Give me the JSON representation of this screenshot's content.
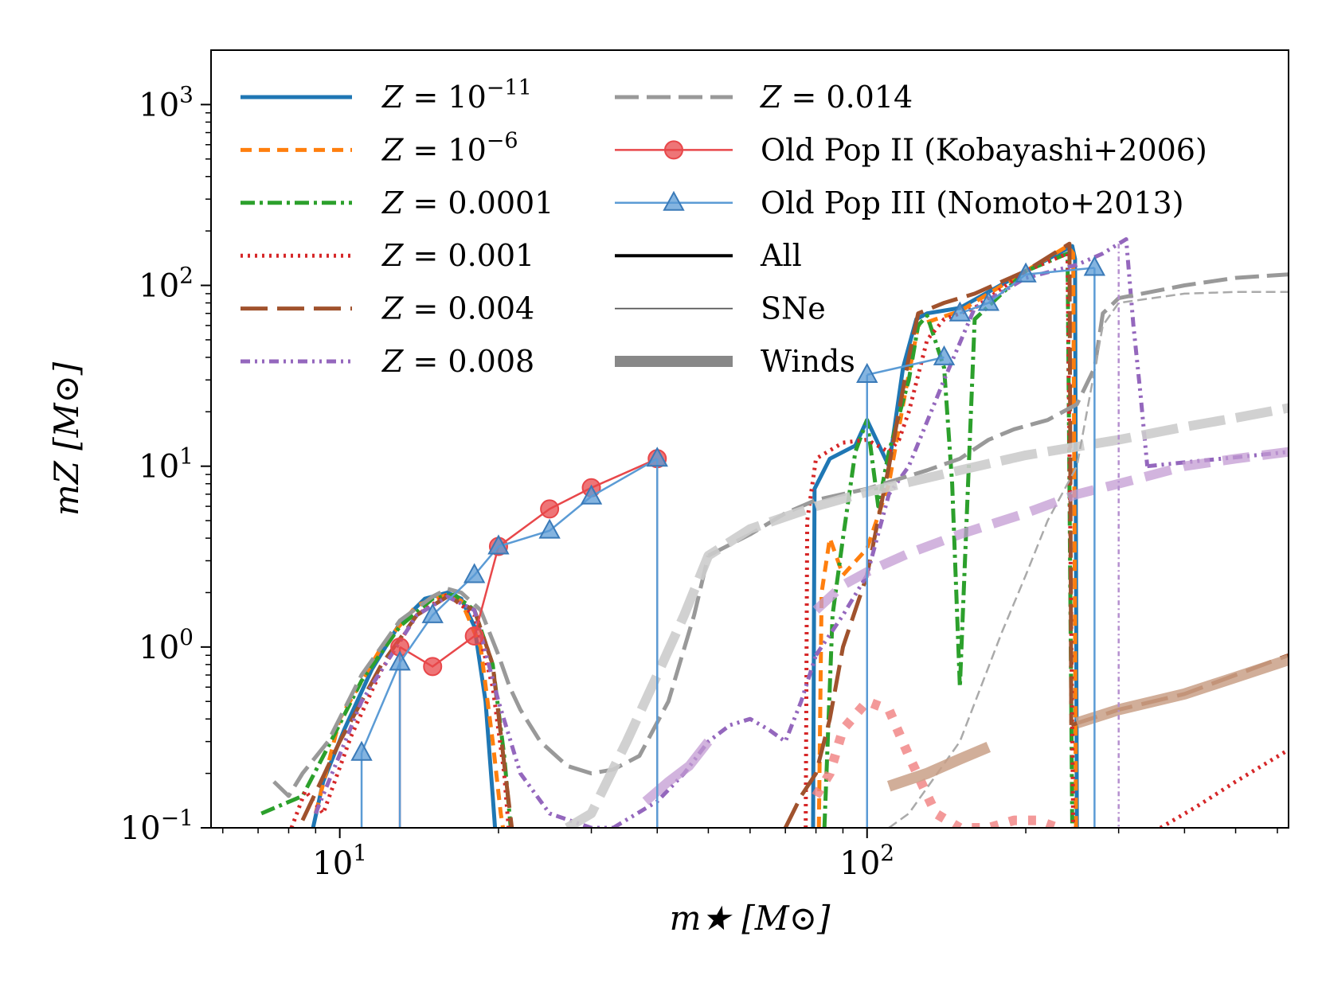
{
  "chart_data": {
    "type": "line",
    "xscale": "log",
    "yscale": "log",
    "xlim": [
      5.7,
      630
    ],
    "ylim": [
      0.1,
      2000
    ],
    "xlabel": "m★ [M⊙]",
    "ylabel": "mZ [M⊙]",
    "x_ticks": [
      {
        "value": 10,
        "base": "10",
        "exp": "1"
      },
      {
        "value": 100,
        "base": "10",
        "exp": "2"
      }
    ],
    "y_ticks": [
      {
        "value": 0.1,
        "base": "10",
        "exp": "−1"
      },
      {
        "value": 1,
        "base": "10",
        "exp": "0"
      },
      {
        "value": 10,
        "base": "10",
        "exp": "1"
      },
      {
        "value": 100,
        "base": "10",
        "exp": "2"
      },
      {
        "value": 1000,
        "base": "10",
        "exp": "3"
      }
    ],
    "legend": {
      "placement": "top-left",
      "entries": [
        {
          "label_prefix": "Z = 10",
          "label_sup": "−11",
          "color": "#1f77b4",
          "style": "solid"
        },
        {
          "label_prefix": "Z = 10",
          "label_sup": "−6",
          "color": "#ff7f0e",
          "style": "dashed"
        },
        {
          "label_prefix": "Z = 0.0001",
          "label_sup": "",
          "color": "#2ca02c",
          "style": "dashdot"
        },
        {
          "label_prefix": "Z = 0.001",
          "label_sup": "",
          "color": "#d62728",
          "style": "dotted"
        },
        {
          "label_prefix": "Z = 0.004",
          "label_sup": "",
          "color": "#a0522d",
          "style": "longdash"
        },
        {
          "label_prefix": "Z = 0.008",
          "label_sup": "",
          "color": "#9467bd",
          "style": "dashdotdot"
        },
        {
          "label_prefix": "Z = 0.014",
          "label_sup": "",
          "color": "#999999",
          "style": "dash"
        },
        {
          "label_prefix": "Old Pop II (Kobayashi+2006)",
          "label_sup": "",
          "color": "#e8474a",
          "style": "marker-circle"
        },
        {
          "label_prefix": "Old Pop III (Nomoto+2013)",
          "label_sup": "",
          "color": "#5b9bd5",
          "style": "marker-triangle"
        },
        {
          "label_prefix": "All",
          "label_sup": "",
          "color": "#000000",
          "style": "thick"
        },
        {
          "label_prefix": "SNe",
          "label_sup": "",
          "color": "#555555",
          "style": "thin"
        },
        {
          "label_prefix": "Winds",
          "label_sup": "",
          "color": "#888888",
          "style": "wide"
        }
      ]
    },
    "series": [
      {
        "name": "Z = 10^-11 (All)",
        "color": "#1f77b4",
        "dash": "",
        "width": 5,
        "opacity": 1,
        "x": [
          8.9,
          9.3,
          10.2,
          11.5,
          13,
          14.5,
          16,
          17,
          18,
          18.9,
          19.5,
          19.7
        ],
        "y": [
          0.1,
          0.18,
          0.35,
          0.75,
          1.35,
          1.85,
          2.0,
          1.85,
          1.3,
          0.5,
          0.15,
          0.1
        ]
      },
      {
        "name": "Z = 10^-11 high (All)",
        "color": "#1f77b4",
        "dash": "",
        "width": 5,
        "opacity": 1,
        "x": [
          79,
          79.5,
          85,
          95,
          100,
          110,
          117,
          124,
          130,
          150,
          200,
          240,
          245,
          248,
          250
        ],
        "y": [
          0.1,
          7.5,
          11,
          13,
          18,
          10,
          35,
          65,
          70,
          75,
          120,
          160,
          165,
          140,
          0.1
        ]
      },
      {
        "name": "Z = 10^-6 (All)",
        "color": "#ff7f0e",
        "dash": "14,9",
        "width": 5,
        "opacity": 1,
        "x": [
          9.0,
          10,
          12,
          14,
          16,
          17,
          18.5,
          19.5,
          20.2,
          20.4
        ],
        "y": [
          0.12,
          0.4,
          1.0,
          1.7,
          1.95,
          1.8,
          1.0,
          0.3,
          0.12,
          0.1
        ]
      },
      {
        "name": "Z = 10^-6 high (All)",
        "color": "#ff7f0e",
        "dash": "14,9",
        "width": 5,
        "opacity": 1,
        "x": [
          81,
          82,
          85,
          90,
          100,
          110,
          118,
          125,
          135,
          150,
          200,
          240,
          246,
          249
        ],
        "y": [
          0.1,
          2.0,
          4.0,
          2.5,
          3.5,
          8,
          25,
          60,
          65,
          72,
          120,
          165,
          150,
          0.1
        ]
      },
      {
        "name": "Z = 0.0001 (All)",
        "color": "#2ca02c",
        "dash": "18,6,4,6",
        "width": 5,
        "opacity": 1,
        "x": [
          7.1,
          8.5,
          9.5,
          11,
          13,
          15,
          16.5,
          18,
          19.5,
          20.5,
          21.1
        ],
        "y": [
          0.12,
          0.15,
          0.28,
          0.65,
          1.3,
          1.85,
          1.95,
          1.6,
          0.8,
          0.25,
          0.1
        ]
      },
      {
        "name": "Z = 0.0001 high (All)",
        "color": "#2ca02c",
        "dash": "18,6,4,6",
        "width": 5,
        "opacity": 1,
        "x": [
          83,
          86,
          90,
          95,
          100,
          105,
          110,
          120,
          125,
          130,
          140,
          145,
          150,
          160,
          200,
          240,
          245
        ],
        "y": [
          0.1,
          1.5,
          4,
          12,
          18,
          6,
          12,
          30,
          60,
          68,
          35,
          8,
          0.6,
          65,
          120,
          150,
          0.1
        ]
      },
      {
        "name": "Z = 0.001 (All)",
        "color": "#d62728",
        "dash": "3,6",
        "width": 5,
        "opacity": 1,
        "x": [
          8.1,
          8.6,
          9.3,
          10.5,
          12,
          14,
          16,
          18,
          19.5,
          20.5,
          20.9
        ],
        "y": [
          0.1,
          0.16,
          0.12,
          0.32,
          0.75,
          1.5,
          1.95,
          1.5,
          0.6,
          0.2,
          0.1
        ]
      },
      {
        "name": "Z = 0.001 high (All)",
        "color": "#d62728",
        "dash": "3,6",
        "width": 5,
        "opacity": 1,
        "x": [
          76.5,
          77,
          80,
          90,
          100,
          110,
          115,
          120,
          130,
          140,
          160,
          200,
          240,
          246
        ],
        "y": [
          0.1,
          5.0,
          11,
          13.5,
          14,
          12,
          14,
          20,
          50,
          65,
          75,
          120,
          150,
          0.1
        ]
      },
      {
        "name": "Z = 0.001 tail (All)",
        "color": "#d62728",
        "dash": "3,6",
        "width": 5,
        "opacity": 1,
        "x": [
          360,
          420,
          500,
          630
        ],
        "y": [
          0.1,
          0.13,
          0.18,
          0.27
        ]
      },
      {
        "name": "Z = 0.004 (All)",
        "color": "#a0522d",
        "dash": "34,12",
        "width": 5,
        "opacity": 1,
        "x": [
          8.5,
          10,
          12,
          14,
          16,
          18,
          19.5,
          20.6,
          21.2
        ],
        "y": [
          0.11,
          0.3,
          0.8,
          1.5,
          1.9,
          1.6,
          0.8,
          0.2,
          0.1
        ]
      },
      {
        "name": "Z = 0.004 high (All)",
        "color": "#a0522d",
        "dash": "34,12",
        "width": 5,
        "opacity": 1,
        "x": [
          70,
          75,
          80,
          85,
          90,
          100,
          110,
          120,
          125,
          140,
          160,
          200,
          238,
          242,
          244
        ],
        "y": [
          0.1,
          0.15,
          0.2,
          0.4,
          1.0,
          2.5,
          10,
          40,
          70,
          80,
          90,
          120,
          165,
          170,
          0.37
        ]
      },
      {
        "name": "Z = 0.004 tail (All)",
        "color": "#a0522d",
        "dash": "34,12",
        "width": 5,
        "opacity": 1,
        "x": [
          244,
          300,
          400,
          500,
          630
        ],
        "y": [
          0.37,
          0.45,
          0.55,
          0.7,
          0.9
        ]
      },
      {
        "name": "Z = 0.008 (All)",
        "color": "#9467bd",
        "dash": "12,6,3,6,3,6",
        "width": 5,
        "opacity": 1,
        "x": [
          9.0,
          11,
          14,
          16,
          18,
          20,
          22,
          25,
          30,
          33
        ],
        "y": [
          0.12,
          0.5,
          1.5,
          1.9,
          1.6,
          0.5,
          0.2,
          0.12,
          0.1,
          0.1
        ]
      },
      {
        "name": "Z = 0.008 mid (All)",
        "color": "#9467bd",
        "dash": "12,6,3,6,3,6",
        "width": 5,
        "opacity": 1,
        "x": [
          33,
          40,
          45,
          50,
          55,
          60,
          65,
          70,
          75,
          80
        ],
        "y": [
          0.1,
          0.14,
          0.2,
          0.3,
          0.37,
          0.4,
          0.35,
          0.3,
          0.5,
          0.9
        ]
      },
      {
        "name": "Z = 0.008 high (All)",
        "color": "#9467bd",
        "dash": "12,6,3,6,3,6",
        "width": 5,
        "opacity": 1,
        "x": [
          80,
          90,
          100,
          110,
          120,
          140,
          160,
          200,
          250,
          280,
          300,
          310,
          320,
          330,
          340
        ],
        "y": [
          0.9,
          1.5,
          2.5,
          7,
          10,
          30,
          75,
          110,
          130,
          150,
          170,
          180,
          60,
          25,
          10
        ]
      },
      {
        "name": "Z = 0.008 tail (All)",
        "color": "#9467bd",
        "dash": "12,6,3,6,3,6",
        "width": 5,
        "opacity": 1,
        "x": [
          340,
          400,
          500,
          630
        ],
        "y": [
          10,
          10.5,
          11.2,
          12
        ]
      },
      {
        "name": "Z = 0.014 (All)",
        "color": "#999999",
        "dash": "30,10",
        "width": 5,
        "opacity": 1,
        "x": [
          7.5,
          8,
          8.5,
          9.5,
          11,
          13,
          15,
          16,
          17,
          18.5,
          20,
          21,
          22,
          24,
          27,
          30,
          33,
          37,
          42,
          47,
          50
        ],
        "y": [
          0.18,
          0.15,
          0.2,
          0.3,
          0.7,
          1.4,
          1.9,
          2.1,
          2.0,
          1.6,
          0.9,
          0.6,
          0.45,
          0.3,
          0.22,
          0.2,
          0.21,
          0.25,
          0.5,
          1.5,
          3.2
        ]
      },
      {
        "name": "Z = 0.014 high (All)",
        "color": "#999999",
        "dash": "30,10",
        "width": 5,
        "opacity": 1,
        "x": [
          50,
          60,
          70,
          80,
          100,
          130,
          150,
          170,
          190,
          220,
          250,
          270,
          280,
          300,
          400,
          500,
          630
        ],
        "y": [
          3.2,
          4.2,
          5.5,
          6.5,
          7.5,
          9.5,
          11,
          14,
          16,
          18,
          22,
          35,
          70,
          85,
          100,
          110,
          115
        ]
      },
      {
        "name": "Z = 0.014 (Winds)",
        "color": "#cccccc",
        "dash": "46,14",
        "width": 12,
        "opacity": 0.9,
        "x": [
          27,
          30,
          35,
          40,
          45,
          50,
          60,
          80,
          100,
          150,
          200,
          300,
          400,
          500,
          630
        ],
        "y": [
          0.1,
          0.12,
          0.3,
          0.7,
          1.5,
          3.2,
          4.5,
          6.0,
          7.2,
          9.5,
          11.5,
          14,
          16.5,
          18.5,
          21
        ]
      },
      {
        "name": "Z = 0.014 (SNe)",
        "color": "#aaaaaa",
        "dash": "12,6",
        "width": 2.5,
        "opacity": 1,
        "x": [
          110,
          120,
          150,
          180,
          200,
          220,
          240,
          250,
          280,
          300,
          400,
          500,
          630
        ],
        "y": [
          0.1,
          0.12,
          0.3,
          1.2,
          2.5,
          5,
          8,
          10,
          60,
          80,
          90,
          92,
          92
        ]
      },
      {
        "name": "Z = 0.008 (Winds)",
        "color": "#c39bd3",
        "dash": "34,16",
        "width": 12,
        "opacity": 0.75,
        "x": [
          80,
          90,
          100,
          120,
          150,
          200,
          250,
          300,
          350,
          400,
          500,
          630
        ],
        "y": [
          1.6,
          2.2,
          2.6,
          3.3,
          4.2,
          5.5,
          7.0,
          8.0,
          9.0,
          10,
          11,
          12
        ]
      },
      {
        "name": "Z = 0.001 (Winds)",
        "color": "#f08080",
        "dash": "10,14",
        "width": 12,
        "opacity": 0.8,
        "x": [
          80,
          85,
          90,
          100,
          110,
          120,
          135,
          150,
          170,
          190,
          210,
          230
        ],
        "y": [
          0.15,
          0.2,
          0.35,
          0.5,
          0.45,
          0.25,
          0.12,
          0.1,
          0.1,
          0.11,
          0.11,
          0.1
        ]
      },
      {
        "name": "Z = 0.004 (Winds)",
        "color": "#c9a087",
        "dash": "",
        "width": 14,
        "opacity": 0.85,
        "x": [
          110,
          130,
          150,
          170
        ],
        "y": [
          0.17,
          0.2,
          0.24,
          0.28
        ]
      },
      {
        "name": "Z = 0.004 tail (Winds)",
        "color": "#c9a087",
        "dash": "",
        "width": 14,
        "opacity": 0.85,
        "x": [
          250,
          300,
          400,
          500,
          630
        ],
        "y": [
          0.38,
          0.45,
          0.55,
          0.68,
          0.85
        ]
      },
      {
        "name": "Z = 0.008 low (Winds)",
        "color": "#c39bd3",
        "dash": "",
        "width": 12,
        "opacity": 0.75,
        "x": [
          38,
          42,
          46,
          50
        ],
        "y": [
          0.14,
          0.18,
          0.22,
          0.3
        ]
      },
      {
        "name": "Z = 0.008 (SNe)",
        "color": "#b58fcf",
        "dash": "6,4,2,4",
        "width": 2.5,
        "opacity": 1,
        "x": [
          300,
          300
        ],
        "y": [
          170,
          0.1
        ]
      }
    ],
    "pop2": {
      "name": "Old Pop II (Kobayashi+2006)",
      "color": "#e8474a",
      "x": [
        13,
        15,
        18,
        20,
        25,
        30,
        40
      ],
      "y": [
        1.0,
        0.78,
        1.15,
        3.6,
        5.8,
        7.6,
        11.0
      ],
      "drop_x": [
        13,
        40
      ]
    },
    "pop3": {
      "name": "Old Pop III (Nomoto+2013)",
      "color": "#5b9bd5",
      "x": [
        11,
        13,
        15,
        18,
        20,
        25,
        30,
        40,
        100,
        140,
        150,
        170,
        200,
        270
      ],
      "y": [
        0.26,
        0.82,
        1.5,
        2.5,
        3.6,
        4.4,
        6.8,
        11.0,
        32,
        40,
        70,
        80,
        115,
        125
      ],
      "drop_x": [
        11,
        13,
        40,
        100,
        270
      ],
      "segments": [
        [
          0,
          1,
          2,
          3,
          4,
          5,
          6,
          7
        ],
        [
          8,
          9
        ],
        [
          10,
          11,
          12,
          13
        ]
      ]
    }
  }
}
